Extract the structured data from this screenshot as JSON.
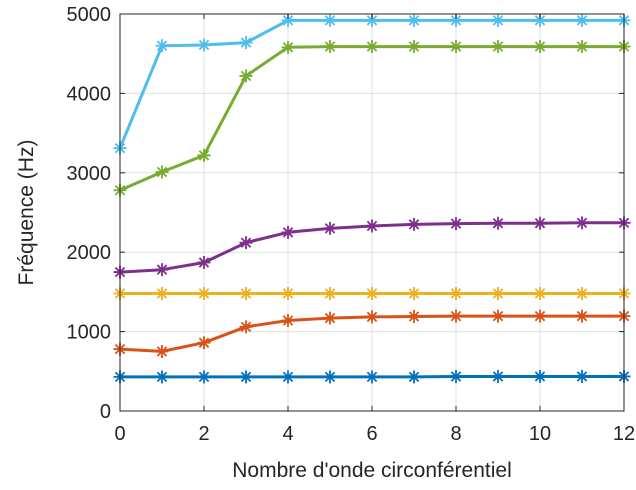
{
  "chart_data": {
    "type": "line",
    "title": "",
    "xlabel": "Nombre d'onde circonférentiel",
    "ylabel": "Fréquence (Hz)",
    "xlim": [
      0,
      12
    ],
    "ylim": [
      0,
      5000
    ],
    "xticks": [
      0,
      2,
      4,
      6,
      8,
      10,
      12
    ],
    "yticks": [
      0,
      1000,
      2000,
      3000,
      4000,
      5000
    ],
    "grid": true,
    "marker": "asterisk",
    "x": [
      0,
      1,
      2,
      3,
      4,
      5,
      6,
      7,
      8,
      9,
      10,
      11,
      12
    ],
    "series": [
      {
        "color": "#0072BD",
        "values": [
          430,
          430,
          430,
          430,
          430,
          430,
          430,
          430,
          435,
          435,
          435,
          435,
          435
        ]
      },
      {
        "color": "#D95319",
        "values": [
          780,
          750,
          860,
          1060,
          1140,
          1170,
          1185,
          1190,
          1195,
          1195,
          1195,
          1195,
          1195
        ]
      },
      {
        "color": "#EDB120",
        "values": [
          1480,
          1480,
          1480,
          1480,
          1480,
          1480,
          1480,
          1480,
          1480,
          1480,
          1480,
          1480,
          1480
        ]
      },
      {
        "color": "#7E2F8E",
        "values": [
          1750,
          1780,
          1870,
          2120,
          2250,
          2300,
          2330,
          2350,
          2360,
          2365,
          2365,
          2370,
          2370
        ]
      },
      {
        "color": "#77AC30",
        "values": [
          2780,
          3010,
          3220,
          4220,
          4580,
          4590,
          4590,
          4590,
          4590,
          4590,
          4590,
          4590,
          4590
        ]
      },
      {
        "color": "#4DBEEE",
        "values": [
          3310,
          4600,
          4610,
          4640,
          4920,
          4920,
          4920,
          4920,
          4920,
          4920,
          4920,
          4920,
          4920
        ]
      }
    ]
  }
}
